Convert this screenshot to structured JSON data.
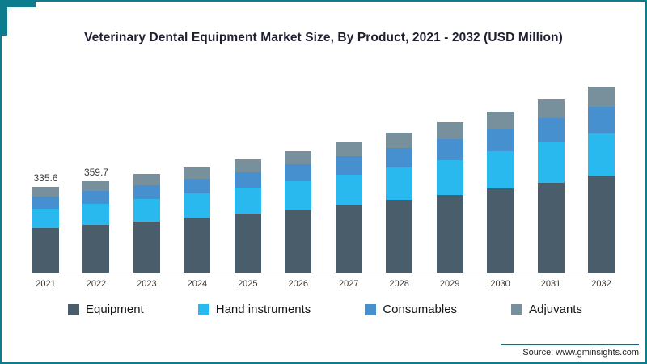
{
  "frame": {
    "border_color": "#0d7c8c"
  },
  "chart_data": {
    "type": "bar",
    "stacked": true,
    "title": "Veterinary Dental Equipment  Market Size, By Product, 2021 - 2032 (USD Million)",
    "categories": [
      "2021",
      "2022",
      "2023",
      "2024",
      "2025",
      "2026",
      "2027",
      "2028",
      "2029",
      "2030",
      "2031",
      "2032"
    ],
    "series": [
      {
        "name": "Equipment",
        "color": "#4a5d6b",
        "values": [
          174.5,
          187.0,
          200.7,
          215.3,
          230.9,
          248.0,
          266.2,
          285.5,
          306.3,
          329.2,
          353.6,
          379.6
        ]
      },
      {
        "name": "Hand instruments",
        "color": "#29b9ee",
        "values": [
          77.2,
          82.7,
          88.8,
          95.2,
          102.1,
          109.7,
          117.8,
          126.3,
          135.5,
          145.6,
          156.4,
          167.9
        ]
      },
      {
        "name": "Consumables",
        "color": "#4690cf",
        "values": [
          47.0,
          50.4,
          54.0,
          58.0,
          62.2,
          66.8,
          71.7,
          76.9,
          82.5,
          88.6,
          95.2,
          102.2
        ]
      },
      {
        "name": "Adjuvants",
        "color": "#78909c",
        "values": [
          36.9,
          39.6,
          42.5,
          45.5,
          48.8,
          52.5,
          56.3,
          60.3,
          64.7,
          69.6,
          74.8,
          80.3
        ]
      }
    ],
    "totals": [
      335.6,
      359.7,
      386.0,
      414.0,
      444.0,
      477.0,
      512.0,
      549.0,
      589.0,
      633.0,
      680.0,
      730.0
    ],
    "annotations": [
      {
        "index": 0,
        "text": "335.6"
      },
      {
        "index": 1,
        "text": "359.7"
      }
    ],
    "ylim": [
      0,
      800
    ],
    "grid": false,
    "legend_position": "bottom"
  },
  "source": {
    "label": "Source: www.gminsights.com"
  }
}
